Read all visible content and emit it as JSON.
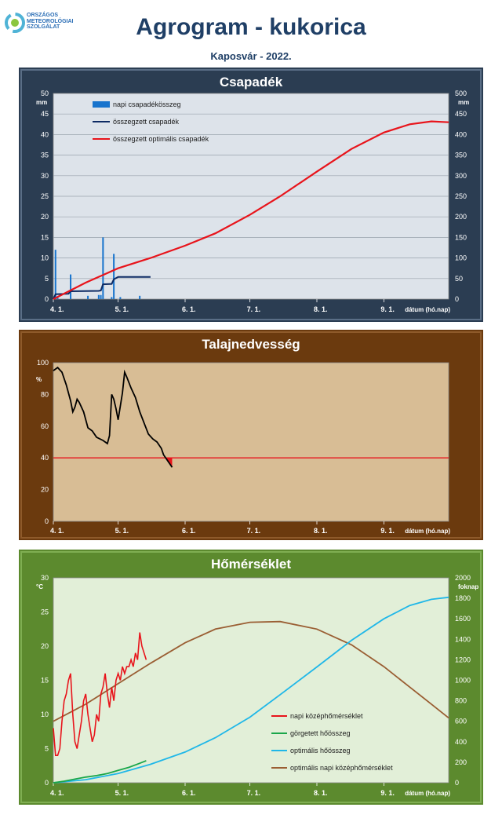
{
  "header": {
    "logo_text_lines": [
      "ORSZÁGOS",
      "METEOROLÓGIAI",
      "SZOLGÁLAT"
    ],
    "title": "Agrogram - kukorica",
    "subtitle": "Kaposvár - 2022."
  },
  "colors": {
    "panel1_bg": "#2b3d52",
    "panel2_bg": "#6b3a0e",
    "panel3_bg": "#5c8a2e",
    "plot1_bg": "#dde3ea",
    "plot2_bg": "#d8bd95",
    "plot3_bg": "#e2efd8",
    "red": "#e8141b",
    "navy": "#0d2a63",
    "bar_blue": "#1874cd",
    "green": "#1aa64a",
    "cyan": "#1fb7e8",
    "brown": "#9a5e33"
  },
  "x_axis": {
    "tick_labels": [
      "4. 1.",
      "5. 1.",
      "6. 1.",
      "7. 1.",
      "8. 1.",
      "9. 1."
    ],
    "label": "dátum (hó.nap)"
  },
  "chart_data": [
    {
      "type": "bar",
      "title": "Csapadék",
      "ylabel": "mm",
      "y2label": "mm",
      "ylim": [
        0,
        50
      ],
      "y2lim": [
        0,
        500
      ],
      "y_ticks": [
        "0",
        "5",
        "10",
        "15",
        "20",
        "25",
        "30",
        "35",
        "40",
        "45",
        "50"
      ],
      "y2_ticks": [
        "0",
        "50",
        "100",
        "150",
        "200",
        "250",
        "300",
        "350",
        "400",
        "450",
        "500"
      ],
      "xlim": [
        0,
        183
      ],
      "x_ticks": [
        0,
        30,
        61,
        91,
        122,
        153
      ],
      "legend": [
        "napi csapadékösszeg",
        "összegzett csapadék",
        "összegzett optimális csapadék"
      ],
      "legend_position": "top-left",
      "grid": true,
      "bars": [
        {
          "x": 1,
          "value": 12
        },
        {
          "x": 2,
          "value": 0.5
        },
        {
          "x": 8,
          "value": 6
        },
        {
          "x": 16,
          "value": 0.8
        },
        {
          "x": 21,
          "value": 1
        },
        {
          "x": 22,
          "value": 1
        },
        {
          "x": 23,
          "value": 15
        },
        {
          "x": 27,
          "value": 0.5
        },
        {
          "x": 28,
          "value": 11
        },
        {
          "x": 31,
          "value": 0.5
        },
        {
          "x": 40,
          "value": 0.8
        }
      ],
      "series": [
        {
          "name": "összegzett csapadék",
          "axis": "left",
          "points": [
            [
              0,
              0
            ],
            [
              1,
              1.2
            ],
            [
              7,
              1.3
            ],
            [
              8,
              1.9
            ],
            [
              21,
              2
            ],
            [
              22,
              2.1
            ],
            [
              23,
              3.6
            ],
            [
              27,
              3.7
            ],
            [
              28,
              4.8
            ],
            [
              30,
              5.4
            ],
            [
              45,
              5.4
            ]
          ]
        },
        {
          "name": "összegzett optimális csapadék",
          "axis": "right",
          "points": [
            [
              0,
              0
            ],
            [
              15,
              40
            ],
            [
              30,
              75
            ],
            [
              45,
              100
            ],
            [
              61,
              130
            ],
            [
              75,
              160
            ],
            [
              91,
              205
            ],
            [
              105,
              250
            ],
            [
              122,
              310
            ],
            [
              138,
              365
            ],
            [
              153,
              405
            ],
            [
              165,
              425
            ],
            [
              175,
              432
            ],
            [
              183,
              430
            ]
          ]
        }
      ]
    },
    {
      "type": "line",
      "title": "Talajnedvesség",
      "ylabel": "%",
      "ylim": [
        0,
        100
      ],
      "y_ticks": [
        "0",
        "20",
        "40",
        "60",
        "80",
        "100"
      ],
      "xlim": [
        0,
        183
      ],
      "x_ticks": [
        0,
        30,
        61,
        91,
        122,
        153
      ],
      "grid": false,
      "series": [
        {
          "name": "talajnedvesség",
          "points": [
            [
              0,
              95
            ],
            [
              2,
              97
            ],
            [
              4,
              94
            ],
            [
              6,
              86
            ],
            [
              8,
              76
            ],
            [
              9,
              69
            ],
            [
              10,
              72
            ],
            [
              11,
              77
            ],
            [
              12,
              75
            ],
            [
              14,
              69
            ],
            [
              16,
              59
            ],
            [
              18,
              57
            ],
            [
              20,
              53
            ],
            [
              23,
              51
            ],
            [
              25,
              49
            ],
            [
              26,
              54
            ],
            [
              27,
              80
            ],
            [
              28,
              77
            ],
            [
              29,
              71
            ],
            [
              30,
              64
            ],
            [
              32,
              81
            ],
            [
              33,
              94
            ],
            [
              34,
              91
            ],
            [
              36,
              84
            ],
            [
              38,
              78
            ],
            [
              40,
              69
            ],
            [
              42,
              62
            ],
            [
              44,
              55
            ],
            [
              46,
              52
            ],
            [
              48,
              50
            ],
            [
              50,
              46
            ],
            [
              51,
              42
            ],
            [
              53,
              38
            ],
            [
              55,
              34
            ]
          ]
        },
        {
          "name": "küszöb",
          "points": [
            [
              0,
              40
            ],
            [
              183,
              40
            ]
          ]
        }
      ]
    },
    {
      "type": "line",
      "title": "Hőmérséklet",
      "ylabel": "°C",
      "y2label": "foknap",
      "ylim": [
        0,
        30
      ],
      "y2lim": [
        0,
        2000
      ],
      "y_ticks": [
        "0",
        "5",
        "10",
        "15",
        "20",
        "25",
        "30"
      ],
      "y2_ticks": [
        "0",
        "200",
        "400",
        "600",
        "800",
        "1000",
        "1200",
        "1400",
        "1600",
        "1800",
        "2000"
      ],
      "xlim": [
        0,
        183
      ],
      "x_ticks": [
        0,
        30,
        61,
        91,
        122,
        153
      ],
      "legend": [
        "napi középhőmérséklet",
        "görgetett hőösszeg",
        "optimális hőösszeg",
        "optimális napi középhőmérséklet"
      ],
      "legend_position": "bottom-right",
      "grid": false,
      "series": [
        {
          "name": "napi középhőmérséklet",
          "axis": "left",
          "points": [
            [
              0,
              8
            ],
            [
              1,
              4
            ],
            [
              2,
              4
            ],
            [
              3,
              5
            ],
            [
              4,
              9
            ],
            [
              5,
              12
            ],
            [
              6,
              13
            ],
            [
              7,
              15
            ],
            [
              8,
              16
            ],
            [
              9,
              10
            ],
            [
              10,
              6
            ],
            [
              11,
              5
            ],
            [
              12,
              7
            ],
            [
              13,
              9
            ],
            [
              14,
              12
            ],
            [
              15,
              13
            ],
            [
              16,
              10
            ],
            [
              17,
              8
            ],
            [
              18,
              6
            ],
            [
              19,
              7
            ],
            [
              20,
              10
            ],
            [
              21,
              9
            ],
            [
              22,
              13
            ],
            [
              23,
              14
            ],
            [
              24,
              16
            ],
            [
              25,
              13
            ],
            [
              26,
              11
            ],
            [
              27,
              14
            ],
            [
              28,
              12
            ],
            [
              29,
              15
            ],
            [
              30,
              16
            ],
            [
              31,
              15
            ],
            [
              32,
              17
            ],
            [
              33,
              16
            ],
            [
              34,
              17
            ],
            [
              35,
              17
            ],
            [
              36,
              18
            ],
            [
              37,
              17
            ],
            [
              38,
              19
            ],
            [
              39,
              18
            ],
            [
              40,
              22
            ],
            [
              41,
              20
            ],
            [
              42,
              19
            ],
            [
              43,
              18
            ]
          ]
        },
        {
          "name": "görgetett hőösszeg",
          "axis": "right",
          "points": [
            [
              0,
              0
            ],
            [
              5,
              15
            ],
            [
              10,
              35
            ],
            [
              15,
              55
            ],
            [
              20,
              70
            ],
            [
              25,
              90
            ],
            [
              30,
              120
            ],
            [
              35,
              150
            ],
            [
              40,
              190
            ],
            [
              43,
              215
            ]
          ]
        },
        {
          "name": "optimális hőösszeg",
          "axis": "right",
          "points": [
            [
              0,
              0
            ],
            [
              15,
              30
            ],
            [
              30,
              90
            ],
            [
              45,
              180
            ],
            [
              61,
              300
            ],
            [
              75,
              440
            ],
            [
              91,
              640
            ],
            [
              105,
              860
            ],
            [
              122,
              1130
            ],
            [
              138,
              1390
            ],
            [
              153,
              1600
            ],
            [
              165,
              1730
            ],
            [
              175,
              1790
            ],
            [
              183,
              1810
            ]
          ]
        },
        {
          "name": "optimális napi középhőmérséklet",
          "axis": "left",
          "points": [
            [
              0,
              9
            ],
            [
              15,
              11.5
            ],
            [
              30,
              14.5
            ],
            [
              45,
              17.5
            ],
            [
              61,
              20.5
            ],
            [
              75,
              22.5
            ],
            [
              91,
              23.5
            ],
            [
              105,
              23.6
            ],
            [
              122,
              22.5
            ],
            [
              138,
              20.2
            ],
            [
              153,
              17
            ],
            [
              165,
              14
            ],
            [
              175,
              11.5
            ],
            [
              183,
              9.5
            ]
          ]
        }
      ]
    }
  ]
}
